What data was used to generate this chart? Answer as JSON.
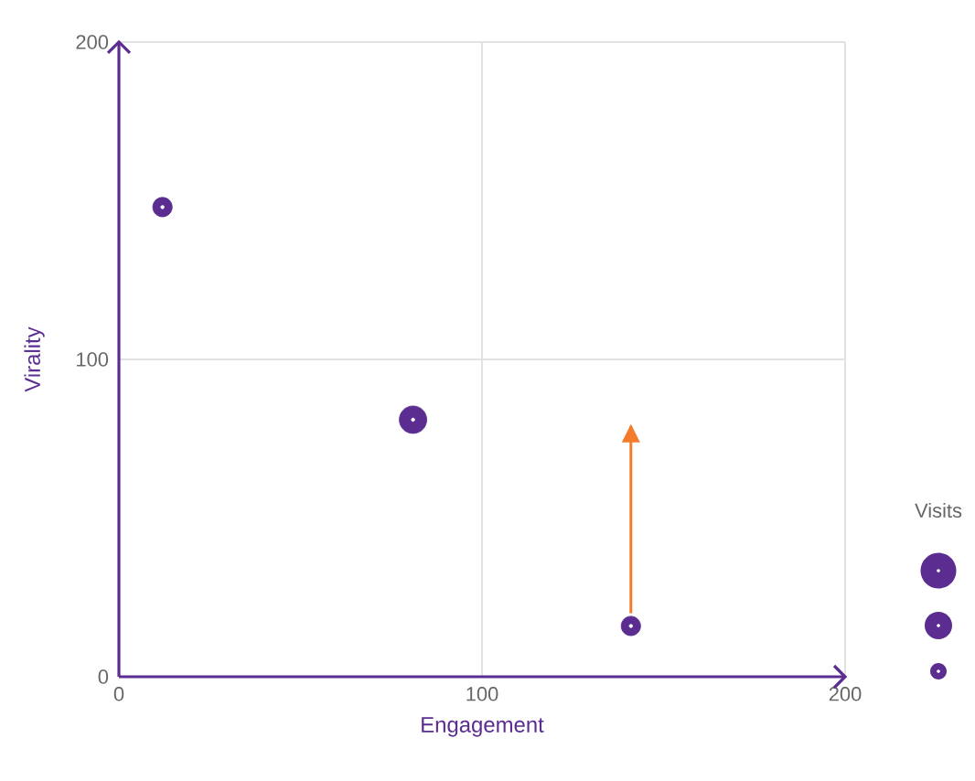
{
  "chart_data": {
    "type": "bubble",
    "xlabel": "Engagement",
    "ylabel": "Virality",
    "legend_title": "Visits",
    "xlim": [
      0,
      200
    ],
    "ylim": [
      0,
      200
    ],
    "xticks": [
      0,
      100,
      200
    ],
    "yticks": [
      0,
      100,
      200
    ],
    "grid": true,
    "series": [
      {
        "color": "#5b2d91",
        "x": [
          12,
          81,
          141
        ],
        "values": [
          148,
          81,
          16
        ],
        "sizes": [
          0.5,
          1,
          0.5
        ]
      },
      {
        "type": "line",
        "color": "#f37b2a",
        "x": [
          141,
          141
        ],
        "values": [
          20,
          79
        ]
      }
    ]
  }
}
